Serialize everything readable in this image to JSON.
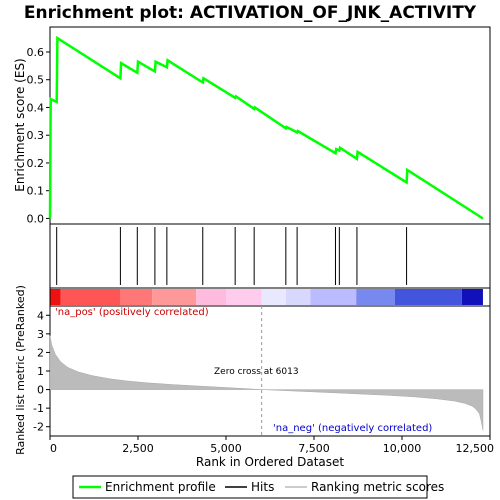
{
  "chart_data": {
    "type": "line",
    "title": "Enrichment plot: ACTIVATION_OF_JNK_ACTIVITY",
    "xlabel": "Rank in Ordered Dataset",
    "xlim": [
      0,
      12500
    ],
    "x_ticks": [
      0,
      2500,
      5000,
      7500,
      10000,
      12500
    ],
    "x_tick_labels": [
      "0",
      "2,500",
      "5,000",
      "7,500",
      "10,000",
      "12,500"
    ],
    "n_genes": 12300,
    "es_panel": {
      "ylabel": "Enrichment score (ES)",
      "ylim": [
        -0.02,
        0.69
      ],
      "y_ticks": [
        0.0,
        0.1,
        0.2,
        0.3,
        0.4,
        0.5,
        0.6
      ],
      "y_tick_labels": [
        "0.0",
        "0.1",
        "0.2",
        "0.3",
        "0.4",
        "0.5",
        "0.6"
      ],
      "series": {
        "name": "Enrichment profile",
        "color": "#00ff00",
        "x": [
          0,
          20,
          190,
          210,
          2000,
          2020,
          2480,
          2500,
          2980,
          3000,
          3320,
          3340,
          4340,
          4360,
          5260,
          5280,
          5800,
          5820,
          6700,
          6720,
          7020,
          7040,
          8110,
          8130,
          8220,
          8240,
          8720,
          8740,
          10130,
          10150,
          12300
        ],
        "y": [
          0.0,
          0.43,
          0.42,
          0.65,
          0.505,
          0.56,
          0.525,
          0.565,
          0.53,
          0.565,
          0.545,
          0.57,
          0.49,
          0.505,
          0.435,
          0.44,
          0.395,
          0.4,
          0.325,
          0.33,
          0.31,
          0.315,
          0.235,
          0.25,
          0.245,
          0.255,
          0.215,
          0.24,
          0.13,
          0.175,
          0.0
        ]
      }
    },
    "hits": {
      "name": "Hits",
      "positions": [
        190,
        2000,
        2480,
        2980,
        3320,
        4340,
        5260,
        5800,
        6700,
        7020,
        8110,
        8220,
        8720,
        10130
      ]
    },
    "ranking_panel": {
      "ylabel": "Ranked list metric (PreRanked)",
      "ylim": [
        -2.5,
        4.5
      ],
      "y_ticks": [
        4,
        3,
        2,
        1,
        0,
        -1,
        -2
      ],
      "y_tick_labels": [
        "4",
        "3",
        "2",
        "1",
        "0",
        "-1",
        "-2"
      ],
      "series_name": "Ranking metric scores",
      "curve_x": [
        0,
        50,
        150,
        300,
        500,
        800,
        1200,
        1700,
        2200,
        2800,
        3500,
        4200,
        5000,
        5500,
        6013,
        6600,
        7300,
        8000,
        8800,
        9600,
        10400,
        11000,
        11500,
        11800,
        12000,
        12100,
        12200,
        12250,
        12300
      ],
      "curve_y": [
        2.9,
        2.4,
        1.9,
        1.5,
        1.2,
        0.95,
        0.75,
        0.58,
        0.46,
        0.36,
        0.27,
        0.19,
        0.11,
        0.06,
        0.0,
        -0.05,
        -0.11,
        -0.17,
        -0.24,
        -0.31,
        -0.4,
        -0.5,
        -0.62,
        -0.75,
        -0.9,
        -1.05,
        -1.3,
        -1.7,
        -2.2
      ],
      "zero_cross_x": 6013,
      "zero_cross_label": "Zero cross at 6013",
      "pos_label": "'na_pos' (positively correlated)",
      "neg_label": "'na_neg' (negatively correlated)"
    },
    "heat_bar": {
      "segments": [
        {
          "from": 0,
          "to": 300,
          "color": "#ee1111"
        },
        {
          "from": 300,
          "to": 2000,
          "color": "#ff5555"
        },
        {
          "from": 2000,
          "to": 2900,
          "color": "#ff7777"
        },
        {
          "from": 2900,
          "to": 4150,
          "color": "#ff9999"
        },
        {
          "from": 4150,
          "to": 5000,
          "color": "#ffbbdd"
        },
        {
          "from": 5000,
          "to": 6013,
          "color": "#ffccee"
        },
        {
          "from": 6013,
          "to": 6700,
          "color": "#e8e8ff"
        },
        {
          "from": 6700,
          "to": 7400,
          "color": "#d8d8ff"
        },
        {
          "from": 7400,
          "to": 8700,
          "color": "#bbbbff"
        },
        {
          "from": 8700,
          "to": 9800,
          "color": "#7788ee"
        },
        {
          "from": 9800,
          "to": 11700,
          "color": "#4455dd"
        },
        {
          "from": 11700,
          "to": 12300,
          "color": "#1111bb"
        }
      ]
    },
    "legend": {
      "placement": "bottom",
      "entries": [
        {
          "label": "Enrichment profile",
          "color": "#00ff00"
        },
        {
          "label": "Hits",
          "color": "#000000"
        },
        {
          "label": "Ranking metric scores",
          "color": "#bbbbbb"
        }
      ]
    }
  }
}
